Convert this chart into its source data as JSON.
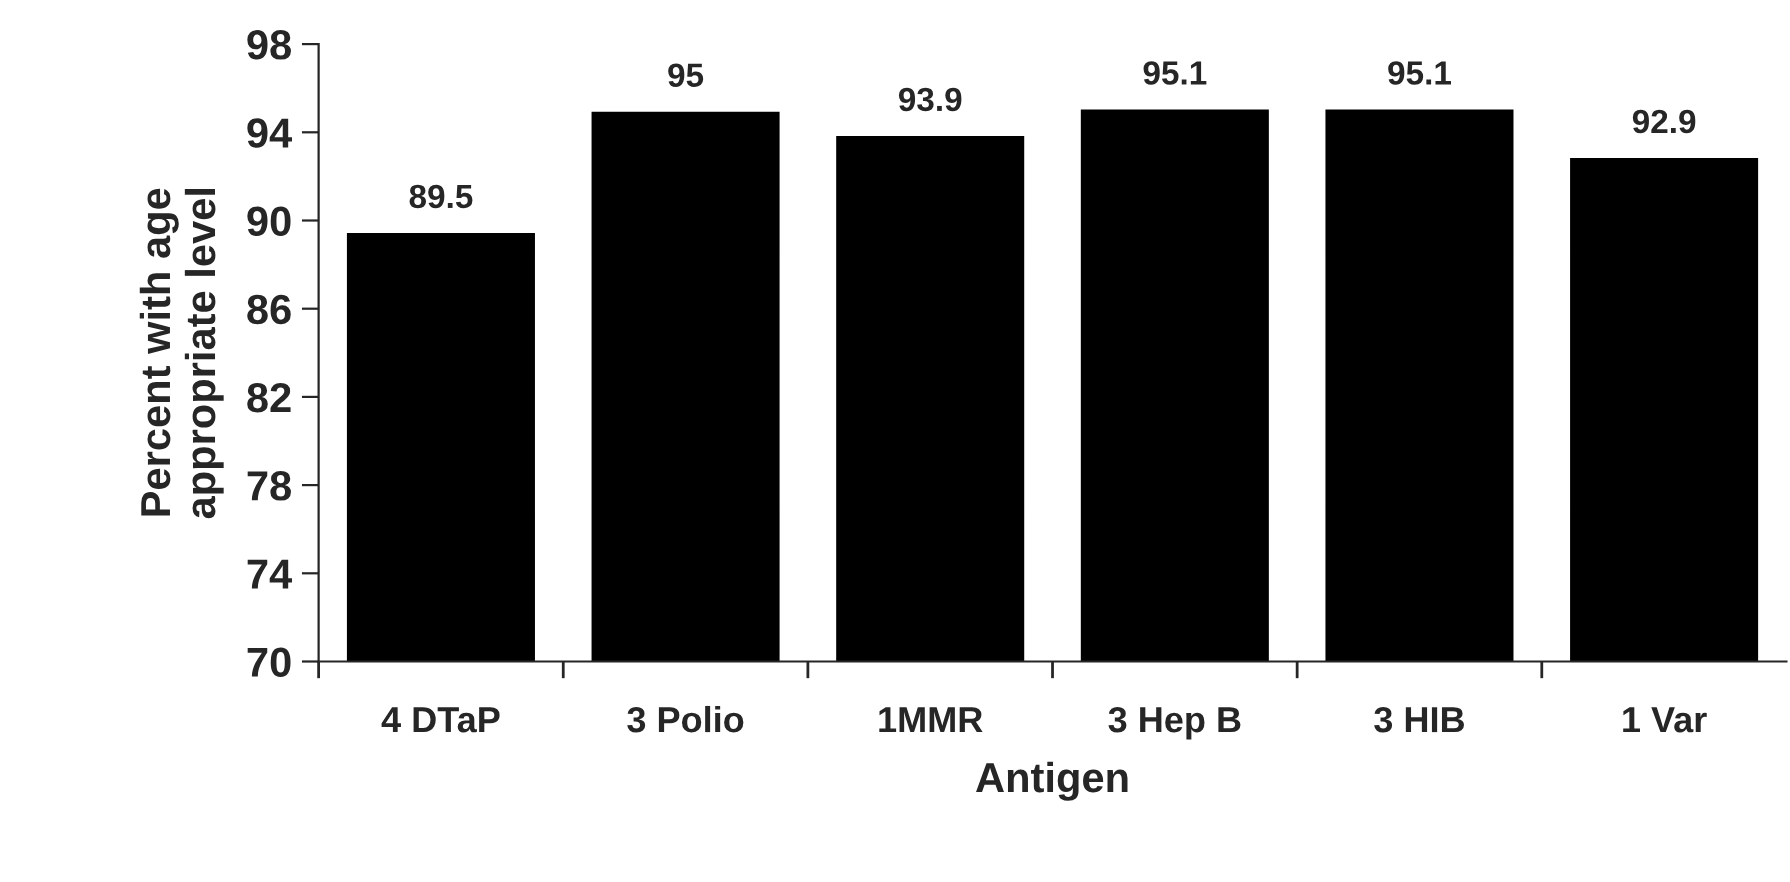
{
  "chart_data": {
    "type": "bar",
    "xlabel": "Antigen",
    "ylabel": "Percent with age\nappropriate level",
    "categories": [
      "4 DTaP",
      "3 Polio",
      "1MMR",
      "3 Hep B",
      "3 HIB",
      "1 Var"
    ],
    "values": [
      89.5,
      95,
      93.9,
      95.1,
      95.1,
      92.9
    ],
    "color": "#000000",
    "ylim": [
      70,
      98
    ],
    "yticks": [
      70,
      74,
      78,
      82,
      86,
      90,
      94,
      98
    ],
    "data_labels": true,
    "grid": false,
    "legend": false
  }
}
